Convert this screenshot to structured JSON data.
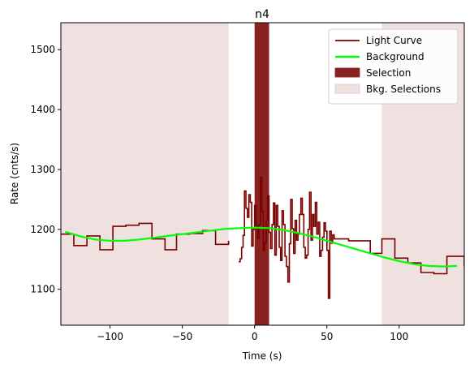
{
  "chart_data": {
    "type": "line",
    "title": "n4",
    "xlabel": "Time (s)",
    "ylabel": "Rate (cnts/s)",
    "xlim": [
      -134,
      145
    ],
    "ylim": [
      1040,
      1545
    ],
    "xticks": [
      -100,
      -50,
      0,
      50,
      100
    ],
    "xtick_labels": [
      "−100",
      "−50",
      "0",
      "50",
      "100"
    ],
    "yticks": [
      1100,
      1200,
      1300,
      1400,
      1500
    ],
    "ytick_labels": [
      "1100",
      "1200",
      "1300",
      "1400",
      "1500"
    ],
    "grid": false,
    "legend_position": "top-right",
    "colors": {
      "light_curve": "#7b0000",
      "background": "#00ff00",
      "selection": "#8b2222",
      "bkg_selection": "#f0e1e1",
      "bkg_selection_edge": "#e2c6c6"
    },
    "legend": [
      {
        "label": "Light Curve",
        "kind": "line",
        "color": "#7b0000"
      },
      {
        "label": "Background",
        "kind": "line",
        "color": "#00ff00"
      },
      {
        "label": "Selection",
        "kind": "patch",
        "color": "#8b2222"
      },
      {
        "label": "Bkg. Selections",
        "kind": "patch",
        "color": "#f0e1e1"
      }
    ],
    "bkg_selections": [
      [
        -134,
        -18
      ],
      [
        88,
        145
      ]
    ],
    "selection": [
      0,
      10
    ],
    "light_curve_coarse": {
      "edges": [
        -134,
        -125,
        -116,
        -107,
        -98,
        -89,
        -80,
        -71,
        -62,
        -54,
        -45,
        -36,
        -27,
        -18
      ],
      "values": [
        1192,
        1173,
        1189,
        1166,
        1205,
        1207,
        1210,
        1184,
        1166,
        1192,
        1193,
        1198,
        1175,
        1181
      ]
    },
    "light_curve_fine": {
      "edges": [
        -11,
        -10,
        -9,
        -8,
        -7,
        -6,
        -5,
        -4,
        -3,
        -2,
        -1,
        0,
        1,
        2,
        3,
        4,
        5,
        6,
        7,
        8,
        9,
        10,
        11,
        12,
        13,
        14,
        15,
        16,
        17,
        18,
        19,
        20,
        21,
        22,
        23,
        24,
        25,
        26,
        27,
        28,
        29,
        30,
        31,
        32,
        33,
        34,
        35,
        36,
        37,
        38,
        39,
        40,
        41,
        42,
        43,
        44,
        45,
        46,
        47,
        48,
        49,
        50,
        51,
        52,
        53,
        54,
        55,
        56
      ],
      "values": [
        1146,
        1151,
        1170,
        1190,
        1264,
        1235,
        1220,
        1258,
        1245,
        1172,
        1200,
        1240,
        1206,
        1185,
        1208,
        1287,
        1230,
        1165,
        1178,
        1215,
        1256,
        1195,
        1168,
        1208,
        1244,
        1157,
        1240,
        1205,
        1170,
        1148,
        1231,
        1208,
        1155,
        1138,
        1112,
        1176,
        1250,
        1201,
        1160,
        1215,
        1182,
        1192,
        1225,
        1252,
        1225,
        1170,
        1152,
        1157,
        1200,
        1262,
        1182,
        1225,
        1205,
        1245,
        1192,
        1212,
        1155,
        1165,
        1187,
        1211,
        1197,
        1165,
        1085,
        1197,
        1177,
        1191,
        1184
      ]
    },
    "light_curve_tail": {
      "edges": [
        56,
        65,
        74,
        80,
        88,
        97,
        106,
        115,
        124,
        133,
        145
      ],
      "values": [
        1184,
        1181,
        1181,
        1160,
        1184,
        1152,
        1144,
        1128,
        1126,
        1155,
        1138
      ]
    },
    "background_curve": {
      "x": [
        -131,
        -120,
        -110,
        -100,
        -90,
        -80,
        -70,
        -60,
        -50,
        -40,
        -30,
        -20,
        -10,
        0,
        10,
        20,
        30,
        40,
        50,
        60,
        70,
        80,
        90,
        100,
        110,
        120,
        130,
        140
      ],
      "y": [
        1196,
        1188,
        1183,
        1181,
        1181,
        1183,
        1186,
        1189,
        1192,
        1195,
        1198,
        1201,
        1202,
        1203,
        1202,
        1199,
        1194,
        1188,
        1181,
        1174,
        1167,
        1160,
        1153,
        1147,
        1142,
        1139,
        1138,
        1139
      ]
    }
  }
}
